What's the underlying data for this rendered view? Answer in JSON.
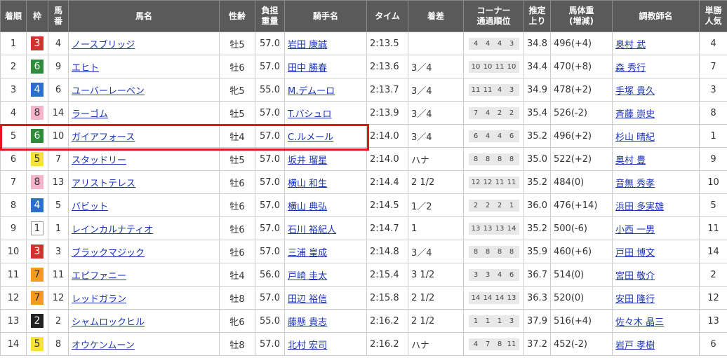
{
  "header": {
    "columns": [
      [
        "着順"
      ],
      [
        "枠"
      ],
      [
        "馬",
        "番"
      ],
      [
        "馬名"
      ],
      [
        "性齢"
      ],
      [
        "負担",
        "重量"
      ],
      [
        "騎手名"
      ],
      [
        "タイム"
      ],
      [
        "着差"
      ],
      [
        "コーナー",
        "通過順位"
      ],
      [
        "推定",
        "上り"
      ],
      [
        "馬体重",
        "(増減)"
      ],
      [
        "調教師名"
      ],
      [
        "単勝",
        "人気"
      ]
    ]
  },
  "rows": [
    {
      "rank": "1",
      "frame": "3",
      "num": "4",
      "name": "ノースブリッジ",
      "sex_age": "牡5",
      "weight": "57.0",
      "jockey": "岩田 康誠",
      "time": "2:13.5",
      "margin": null,
      "corners": [
        "4",
        "4",
        "4",
        "3"
      ],
      "last": "34.8",
      "body": "496(+4)",
      "trainer": "奥村 武",
      "pop": "4"
    },
    {
      "rank": "2",
      "frame": "6",
      "num": "9",
      "name": "エヒト",
      "sex_age": "牡6",
      "weight": "57.0",
      "jockey": "田中 勝春",
      "time": "2:13.6",
      "margin": "3／4",
      "corners": [
        "10",
        "10",
        "11",
        "10"
      ],
      "last": "34.4",
      "body": "470(+8)",
      "trainer": "森 秀行",
      "pop": "7"
    },
    {
      "rank": "3",
      "frame": "4",
      "num": "6",
      "name": "ユーバーレーベン",
      "sex_age": "牝5",
      "weight": "55.0",
      "jockey": "M.デムーロ",
      "time": "2:13.7",
      "margin": "3／4",
      "corners": [
        "11",
        "11",
        "4",
        "3"
      ],
      "last": "34.9",
      "body": "478(+2)",
      "trainer": "手塚 貴久",
      "pop": "3"
    },
    {
      "rank": "4",
      "frame": "8",
      "num": "14",
      "name": "ラーゴム",
      "sex_age": "牡5",
      "weight": "57.0",
      "jockey": "T.バシュロ",
      "time": "2:13.9",
      "margin": "3／4",
      "corners": [
        "7",
        "4",
        "2",
        "2"
      ],
      "last": "35.4",
      "body": "526(-2)",
      "trainer": "斉藤 崇史",
      "pop": "8"
    },
    {
      "rank": "5",
      "frame": "6",
      "num": "10",
      "name": "ガイアフォース",
      "sex_age": "牡4",
      "weight": "57.0",
      "jockey": "C.ルメール",
      "time": "2:14.0",
      "margin": "3／4",
      "corners": [
        "6",
        "4",
        "4",
        "6"
      ],
      "last": "35.2",
      "body": "496(+2)",
      "trainer": "杉山 晴紀",
      "pop": "1"
    },
    {
      "rank": "6",
      "frame": "5",
      "num": "7",
      "name": "スタッドリー",
      "sex_age": "牡5",
      "weight": "57.0",
      "jockey": "坂井 瑠星",
      "time": "2:14.0",
      "margin": "ハナ",
      "corners": [
        "8",
        "8",
        "8",
        "8"
      ],
      "last": "35.0",
      "body": "522(+2)",
      "trainer": "奥村 豊",
      "pop": "9"
    },
    {
      "rank": "7",
      "frame": "8",
      "num": "13",
      "name": "アリストテレス",
      "sex_age": "牡6",
      "weight": "57.0",
      "jockey": "横山 和生",
      "time": "2:14.4",
      "margin": "2 1/2",
      "corners": [
        "12",
        "12",
        "11",
        "11"
      ],
      "last": "35.2",
      "body": "484(0)",
      "trainer": "音無 秀孝",
      "pop": "10"
    },
    {
      "rank": "8",
      "frame": "4",
      "num": "5",
      "name": "バビット",
      "sex_age": "牡6",
      "weight": "57.0",
      "jockey": "横山 典弘",
      "time": "2:14.5",
      "margin": "1／2",
      "corners": [
        "2",
        "2",
        "2",
        "1"
      ],
      "last": "36.0",
      "body": "476(+14)",
      "trainer": "浜田 多実雄",
      "pop": "5"
    },
    {
      "rank": "9",
      "frame": "1",
      "num": "1",
      "name": "レインカルナティオ",
      "sex_age": "牡6",
      "weight": "57.0",
      "jockey": "石川 裕紀人",
      "time": "2:14.7",
      "margin": "1",
      "corners": [
        "13",
        "13",
        "13",
        "14"
      ],
      "last": "35.2",
      "body": "500(-6)",
      "trainer": "小西 一男",
      "pop": "11"
    },
    {
      "rank": "10",
      "frame": "3",
      "num": "3",
      "name": "ブラックマジック",
      "sex_age": "牡6",
      "weight": "57.0",
      "jockey": "三浦 皇成",
      "time": "2:14.8",
      "margin": "3／4",
      "corners": [
        "8",
        "8",
        "8",
        "8"
      ],
      "last": "35.9",
      "body": "460(+6)",
      "trainer": "戸田 博文",
      "pop": "14"
    },
    {
      "rank": "11",
      "frame": "7",
      "num": "11",
      "name": "エピファニー",
      "sex_age": "牡4",
      "weight": "56.0",
      "jockey": "戸崎 圭太",
      "time": "2:15.4",
      "margin": "3 1/2",
      "corners": [
        "3",
        "3",
        "4",
        "6"
      ],
      "last": "36.7",
      "body": "514(0)",
      "trainer": "宮田 敬介",
      "pop": "2"
    },
    {
      "rank": "12",
      "frame": "7",
      "num": "12",
      "name": "レッドガラン",
      "sex_age": "牡8",
      "weight": "57.0",
      "jockey": "田辺 裕信",
      "time": "2:15.8",
      "margin": "2 1/2",
      "corners": [
        "14",
        "14",
        "14",
        "13"
      ],
      "last": "36.3",
      "body": "520(0)",
      "trainer": "安田 隆行",
      "pop": "12"
    },
    {
      "rank": "13",
      "frame": "2",
      "num": "2",
      "name": "シャムロックヒル",
      "sex_age": "牝6",
      "weight": "55.0",
      "jockey": "藤懸 貴志",
      "time": "2:16.2",
      "margin": "2 1/2",
      "corners": [
        "1",
        "1",
        "1",
        "3"
      ],
      "last": "37.9",
      "body": "516(+4)",
      "trainer": "佐々木 晶三",
      "pop": "13"
    },
    {
      "rank": "14",
      "frame": "5",
      "num": "8",
      "name": "オウケンムーン",
      "sex_age": "牡8",
      "weight": "57.0",
      "jockey": "北村 宏司",
      "time": "2:16.2",
      "margin": "ハナ",
      "corners": [
        "4",
        "7",
        "8",
        "11"
      ],
      "last": "37.2",
      "body": "452(-2)",
      "trainer": "岩戸 孝樹",
      "pop": "6"
    }
  ]
}
